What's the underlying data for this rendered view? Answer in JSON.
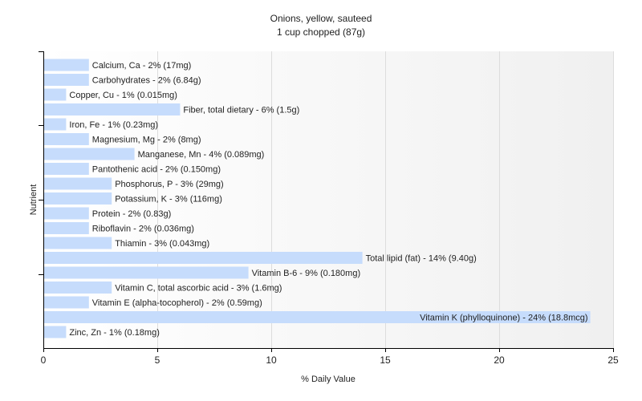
{
  "chart_data": {
    "type": "bar",
    "orientation": "horizontal",
    "title": "Onions, yellow, sauteed",
    "subtitle": "1 cup chopped (87g)",
    "xlabel": "% Daily Value",
    "ylabel": "Nutrient",
    "xlim": [
      0,
      25
    ],
    "xticks": [
      0,
      5,
      10,
      15,
      20,
      25
    ],
    "grid": true,
    "bar_color": "#c6dcfc",
    "categories": [
      "Calcium, Ca",
      "Carbohydrates",
      "Copper, Cu",
      "Fiber, total dietary",
      "Iron, Fe",
      "Magnesium, Mg",
      "Manganese, Mn",
      "Pantothenic acid",
      "Phosphorus, P",
      "Potassium, K",
      "Protein",
      "Riboflavin",
      "Thiamin",
      "Total lipid (fat)",
      "Vitamin B-6",
      "Vitamin C, total ascorbic acid",
      "Vitamin E (alpha-tocopherol)",
      "Vitamin K (phylloquinone)",
      "Zinc, Zn"
    ],
    "values": [
      2,
      2,
      1,
      6,
      1,
      2,
      4,
      2,
      3,
      3,
      2,
      2,
      3,
      14,
      9,
      3,
      2,
      24,
      1
    ],
    "labels": [
      "Calcium, Ca - 2% (17mg)",
      "Carbohydrates - 2% (6.84g)",
      "Copper, Cu - 1% (0.015mg)",
      "Fiber, total dietary - 6% (1.5g)",
      "Iron, Fe - 1% (0.23mg)",
      "Magnesium, Mg - 2% (8mg)",
      "Manganese, Mn - 4% (0.089mg)",
      "Pantothenic acid - 2% (0.150mg)",
      "Phosphorus, P - 3% (29mg)",
      "Potassium, K - 3% (116mg)",
      "Protein - 2% (0.83g)",
      "Riboflavin - 2% (0.036mg)",
      "Thiamin - 3% (0.043mg)",
      "Total lipid (fat) - 14% (9.40g)",
      "Vitamin B-6 - 9% (0.180mg)",
      "Vitamin C, total ascorbic acid - 3% (1.6mg)",
      "Vitamin E (alpha-tocopherol) - 2% (0.59mg)",
      "Vitamin K (phylloquinone) - 24% (18.8mcg)",
      "Zinc, Zn - 1% (0.18mg)"
    ]
  }
}
